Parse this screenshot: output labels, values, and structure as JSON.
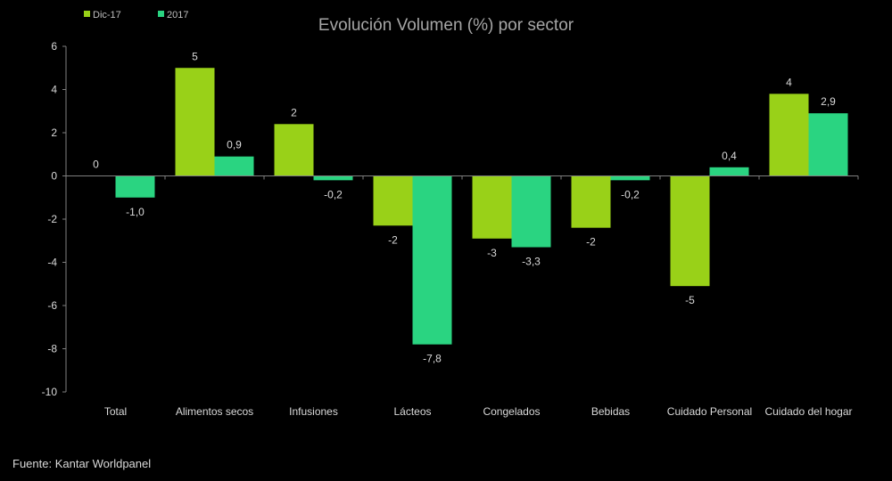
{
  "chart_data": {
    "type": "bar",
    "title": "Evolución Volumen (%) por sector",
    "categories": [
      "Total",
      "Alimentos secos",
      "Infusiones",
      "Lácteos",
      "Congelados",
      "Bebidas",
      "Cuidado Personal",
      "Cuidado del hogar"
    ],
    "series": [
      {
        "name": "Dic-17",
        "color": "#99d118",
        "values": [
          0,
          5,
          2.4,
          -2.3,
          -2.9,
          -2.4,
          -5.1,
          3.8
        ],
        "labels": [
          "0",
          "5",
          "2",
          "-2",
          "-3",
          "-2",
          "-5",
          "4"
        ]
      },
      {
        "name": "2017",
        "color": "#2ad481",
        "values": [
          -1.0,
          0.9,
          -0.2,
          -7.8,
          -3.3,
          -0.2,
          0.4,
          2.9
        ],
        "labels": [
          "-1,0",
          "0,9",
          "-0,2",
          "-7,8",
          "-3,3",
          "-0,2",
          "0,4",
          "2,9"
        ]
      }
    ],
    "ylim": [
      -10,
      6
    ],
    "yticks": [
      6,
      4,
      2,
      0,
      -2,
      -4,
      -6,
      -8,
      -10
    ],
    "xlabel": "",
    "ylabel": "",
    "grid": false,
    "legend_position": "top-left"
  },
  "source": "Fuente: Kantar Worldpanel"
}
